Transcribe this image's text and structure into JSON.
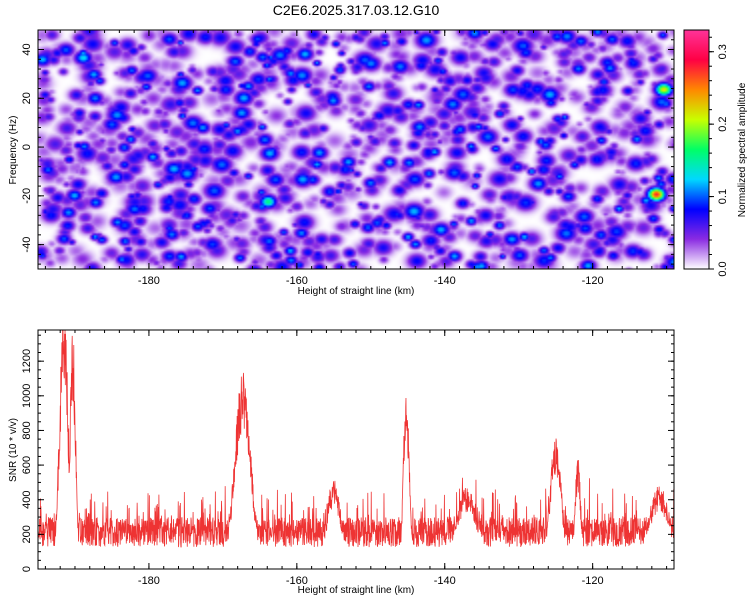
{
  "title": "C2E6.2025.317.03.12.G10",
  "chart_data": [
    {
      "type": "heatmap",
      "xlabel": "Height of straight line (km)",
      "ylabel": "Frequency (Hz)",
      "xlim": [
        -195,
        -109
      ],
      "ylim": [
        -50,
        48
      ],
      "x_ticks": [
        "-180",
        "-160",
        "-140",
        "-120"
      ],
      "y_ticks": [
        "-40",
        "-20",
        "0",
        "20",
        "40"
      ],
      "colorbar": {
        "label": "Normalized spectral amplitude",
        "range": [
          0,
          0.33
        ],
        "ticks": [
          "0.0",
          "0.1",
          "0.2",
          "0.3"
        ],
        "colors": [
          "#ffffff",
          "#8a2be2",
          "#0000ff",
          "#00d8ff",
          "#00ff66",
          "#c8ff00",
          "#ff8800",
          "#ff0044",
          "#ff3399"
        ]
      },
      "hotspots": [
        {
          "x": -110.5,
          "y": 24,
          "v": 0.22
        },
        {
          "x": -111.5,
          "y": -19,
          "v": 0.28
        },
        {
          "x": -164,
          "y": -22,
          "v": 0.16
        },
        {
          "x": -189,
          "y": 37,
          "v": 0.13
        },
        {
          "x": -163,
          "y": -13,
          "v": 0.1
        },
        {
          "x": -130,
          "y": -44,
          "v": 0.1
        },
        {
          "x": -142,
          "y": -38,
          "v": 0.09
        },
        {
          "x": -113,
          "y": 7,
          "v": 0.09
        },
        {
          "x": -181,
          "y": 29,
          "v": 0.08
        }
      ]
    },
    {
      "type": "line",
      "xlabel": "Height of straight line (km)",
      "ylabel": "SNR (10 * v/v)",
      "xlim": [
        -195,
        -109
      ],
      "ylim": [
        0,
        1380
      ],
      "x_ticks": [
        "-180",
        "-160",
        "-140",
        "-120"
      ],
      "y_ticks": [
        "0",
        "200",
        "400",
        "600",
        "800",
        "1000",
        "1200"
      ],
      "color": "#ee3333",
      "baseline": 230,
      "peaks": [
        {
          "x": -191.5,
          "y": 1380,
          "w": 0.6
        },
        {
          "x": -190.3,
          "y": 1250,
          "w": 0.4
        },
        {
          "x": -167.3,
          "y": 1050,
          "w": 1.1
        },
        {
          "x": -145.2,
          "y": 1000,
          "w": 0.4
        },
        {
          "x": -125,
          "y": 700,
          "w": 0.8
        },
        {
          "x": -122,
          "y": 590,
          "w": 0.4
        },
        {
          "x": -155,
          "y": 480,
          "w": 1.0
        },
        {
          "x": -137,
          "y": 430,
          "w": 1.5
        },
        {
          "x": -111,
          "y": 440,
          "w": 1.5
        }
      ]
    }
  ]
}
